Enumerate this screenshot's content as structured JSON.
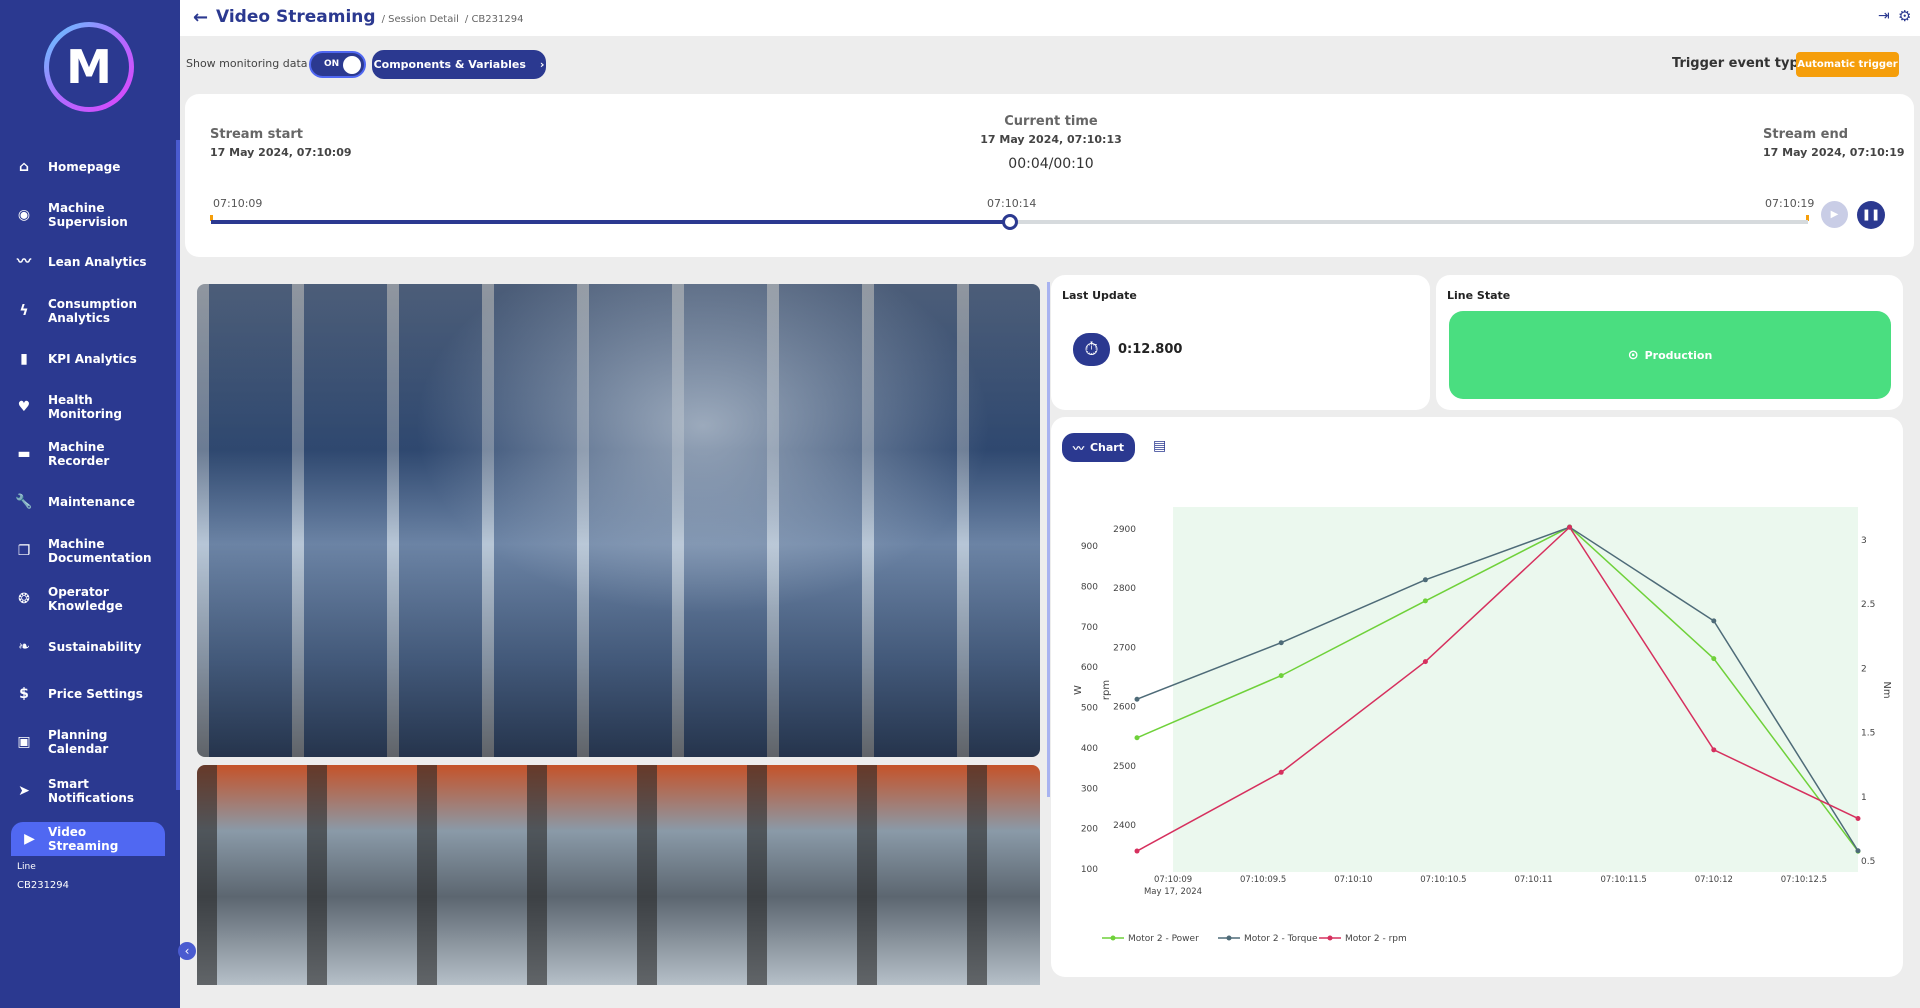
{
  "sidebar": {
    "logo": "M",
    "items": [
      {
        "label": "Homepage",
        "icon": "home-icon",
        "glyph": "⌂"
      },
      {
        "label": "Machine Supervision",
        "icon": "eye-icon",
        "glyph": "◉"
      },
      {
        "label": "Lean Analytics",
        "icon": "trend-icon",
        "glyph": "〰"
      },
      {
        "label": "Consumption Analytics",
        "icon": "bolt-icon",
        "glyph": "ϟ"
      },
      {
        "label": "KPI Analytics",
        "icon": "bar-chart-icon",
        "glyph": "▮"
      },
      {
        "label": "Health Monitoring",
        "icon": "heart-pulse-icon",
        "glyph": "♥"
      },
      {
        "label": "Machine Recorder",
        "icon": "recorder-icon",
        "glyph": "▬"
      },
      {
        "label": "Maintenance",
        "icon": "wrench-icon",
        "glyph": "🔧"
      },
      {
        "label": "Machine Documentation",
        "icon": "document-icon",
        "glyph": "❐"
      },
      {
        "label": "Operator Knowledge",
        "icon": "brain-icon",
        "glyph": "❂"
      },
      {
        "label": "Sustainability",
        "icon": "leaf-icon",
        "glyph": "❧"
      },
      {
        "label": "Price Settings",
        "icon": "dollar-icon",
        "glyph": "$"
      },
      {
        "label": "Planning Calendar",
        "icon": "calendar-icon",
        "glyph": "▣"
      },
      {
        "label": "Smart Notifications",
        "icon": "send-icon",
        "glyph": "➤"
      },
      {
        "label": "Video Streaming",
        "icon": "play-icon",
        "glyph": "▶"
      }
    ],
    "line_label": "Line",
    "line_value": "CB231294"
  },
  "header": {
    "title": "Video Streaming",
    "crumbs": [
      "/ Session Detail",
      "/ CB231294"
    ]
  },
  "toolbar": {
    "show_monitoring": "Show monitoring data",
    "toggle": "ON",
    "components": "Components & Variables",
    "trigger_label": "Trigger event type",
    "trigger_value": "Automatic trigger"
  },
  "timeline": {
    "start_label": "Stream start",
    "start_value": "17 May 2024, 07:10:09",
    "current_label": "Current time",
    "current_value": "17 May 2024, 07:10:13",
    "elapsed": "00:04/00:10",
    "end_label": "Stream end",
    "end_value": "17 May 2024, 07:10:19",
    "ticks": [
      "07:10:09",
      "07:10:14",
      "07:10:19"
    ],
    "progress": 0.5
  },
  "last_update": {
    "label": "Last Update",
    "value": "0:12.800"
  },
  "line_state": {
    "label": "Line State",
    "value": "Production",
    "color": "#4ade80"
  },
  "chart_tabs": {
    "chart": "Chart"
  },
  "chart_data": {
    "type": "line",
    "x": [
      "07:10:08.8",
      "07:10:09.6",
      "07:10:10.4",
      "07:10:11.2",
      "07:10:12.0",
      "07:10:12.8"
    ],
    "x_numeric": [
      8.8,
      9.6,
      10.4,
      11.2,
      12.0,
      12.8
    ],
    "xlim": [
      8.8,
      12.8
    ],
    "x_ticks": [
      {
        "v": 9,
        "label": "07:10:09"
      },
      {
        "v": 9.5,
        "label": "07:10:09.5"
      },
      {
        "v": 10,
        "label": "07:10:10"
      },
      {
        "v": 10.5,
        "label": "07:10:10.5"
      },
      {
        "v": 11,
        "label": "07:10:11"
      },
      {
        "v": 11.5,
        "label": "07:10:11.5"
      },
      {
        "v": 12,
        "label": "07:10:12"
      },
      {
        "v": 12.5,
        "label": "07:10:12.5"
      }
    ],
    "x_date_label": "May 17, 2024",
    "axes": {
      "W": {
        "label": "W",
        "ticks": [
          100,
          200,
          300,
          400,
          500,
          600,
          700,
          800,
          900
        ]
      },
      "rpm": {
        "label": "rpm",
        "ticks": [
          2400,
          2500,
          2600,
          2700,
          2800,
          2900
        ]
      },
      "Nm": {
        "label": "Nm",
        "ticks": [
          0.5,
          1,
          1.5,
          2,
          2.5,
          3
        ]
      }
    },
    "series": [
      {
        "name": "Motor 2 - Power",
        "axis": "W",
        "color": "#6fd13a",
        "values": [
          425,
          579,
          764,
          947,
          621,
          144
        ]
      },
      {
        "name": "Motor 2 - Torque",
        "axis": "Nm",
        "color": "#4e6b78",
        "values": [
          1.76,
          2.2,
          2.69,
          3.1,
          2.37,
          0.58
        ]
      },
      {
        "name": "Motor 2 - rpm",
        "axis": "rpm",
        "color": "#d6305e",
        "values": [
          2356,
          2489,
          2676,
          2903,
          2527,
          2411
        ]
      }
    ],
    "legend": "bottom-left",
    "shaded_region": [
      9,
      12.8
    ]
  }
}
